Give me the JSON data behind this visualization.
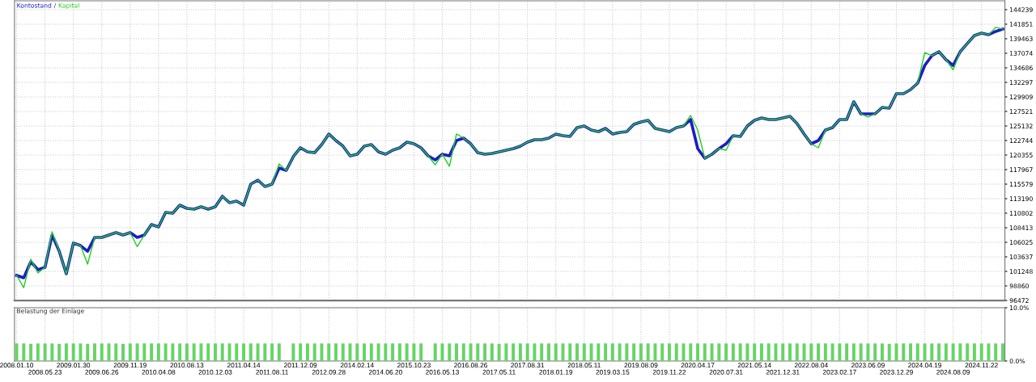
{
  "chart_data": [
    {
      "type": "line",
      "legend": "top left",
      "annotations": [
        "/"
      ],
      "grid": true,
      "tick_labels": "y",
      "line_style": "solid",
      "categories": [
        "2008.01.10",
        null,
        null,
        null,
        "2008.05.23",
        null,
        null,
        null,
        "2009.01.30",
        null,
        null,
        null,
        "2009.06.26",
        null,
        null,
        null,
        "2009.11.19",
        null,
        null,
        null,
        "2010.04.08",
        null,
        null,
        null,
        "2010.08.13",
        null,
        null,
        null,
        "2010.12.03",
        null,
        null,
        null,
        "2011.04.14",
        null,
        null,
        null,
        "2011.08.11",
        null,
        null,
        null,
        "2011.12.09",
        null,
        null,
        null,
        "2012.09.28",
        null,
        null,
        null,
        "2014.02.14",
        null,
        null,
        null,
        "2014.06.20",
        null,
        null,
        null,
        "2015.10.23",
        null,
        null,
        null,
        "2016.05.13",
        null,
        null,
        null,
        "2016.08.26",
        null,
        null,
        null,
        "2017.05.11",
        null,
        null,
        null,
        "2017.08.31",
        null,
        null,
        null,
        "2018.01.19",
        null,
        null,
        null,
        "2018.05.11",
        null,
        null,
        null,
        "2019.03.15",
        null,
        null,
        null,
        "2019.08.09",
        null,
        null,
        null,
        "2019.11.22",
        null,
        null,
        null,
        "2020.04.17",
        null,
        null,
        null,
        "2020.07.31",
        null,
        null,
        null,
        "2021.05.14",
        null,
        null,
        null,
        "2021.12.31",
        null,
        null,
        null,
        "2022.08.04",
        null,
        null,
        null,
        "2023.02.17",
        null,
        null,
        null,
        "2023.06.09",
        null,
        null,
        null,
        "2023.12.29",
        null,
        null,
        null,
        "2024.04.19",
        null,
        null,
        null,
        "2024.08.09",
        null,
        null,
        null,
        "2024.11.22",
        null,
        null,
        null
      ],
      "ylim": [
        96472,
        145700
      ],
      "yticks": [
        96472,
        98860,
        101248,
        103637,
        106025,
        108413,
        110802,
        113190,
        115579,
        117967,
        120355,
        122744,
        125132,
        127521,
        129909,
        132297,
        134686,
        137074,
        139463,
        141851,
        144239
      ],
      "series": [
        {
          "name": "Kontostand",
          "color": "#1c1cc8",
          "values": [
            100580,
            100190,
            102840,
            101510,
            101910,
            107220,
            104560,
            100850,
            105890,
            105490,
            104560,
            106820,
            106820,
            107220,
            107620,
            107220,
            107620,
            106820,
            107220,
            108940,
            108550,
            110930,
            110800,
            112130,
            111600,
            111470,
            111860,
            111470,
            111860,
            113590,
            112530,
            112790,
            112130,
            115580,
            116240,
            115180,
            115580,
            118230,
            117830,
            120090,
            121550,
            120890,
            120750,
            122080,
            123810,
            122740,
            121820,
            120220,
            120490,
            121820,
            122080,
            120890,
            120490,
            121150,
            121550,
            122480,
            122210,
            121550,
            120220,
            119560,
            120490,
            120220,
            122740,
            123140,
            122210,
            120750,
            120490,
            120620,
            120890,
            121150,
            121420,
            121820,
            122480,
            122880,
            122880,
            123140,
            123810,
            123540,
            123410,
            124870,
            125130,
            124470,
            124200,
            124730,
            123810,
            124070,
            124200,
            125400,
            125800,
            126060,
            124730,
            124470,
            124200,
            124870,
            125130,
            126190,
            121420,
            119820,
            120490,
            121420,
            122210,
            123540,
            123410,
            125130,
            126060,
            126460,
            126190,
            126190,
            126460,
            126720,
            125530,
            123810,
            122210,
            122740,
            124470,
            124870,
            126190,
            126190,
            129110,
            127120,
            127120,
            127120,
            128180,
            128050,
            130440,
            130440,
            131100,
            132160,
            135080,
            136680,
            137340,
            136010,
            135080,
            137340,
            138670,
            139990,
            140390,
            140130,
            140660,
            141060
          ]
        },
        {
          "name": "Kapital",
          "color": "#22cc22",
          "values": [
            100580,
            98590,
            103240,
            101000,
            101910,
            107750,
            104560,
            100850,
            105890,
            105490,
            102430,
            106820,
            106820,
            107220,
            107620,
            107220,
            107620,
            105300,
            107220,
            108940,
            108550,
            110930,
            110800,
            112130,
            111600,
            111470,
            111860,
            111470,
            111860,
            113590,
            112530,
            112790,
            112130,
            115580,
            116240,
            115180,
            115580,
            118900,
            117830,
            120090,
            121550,
            120890,
            120750,
            122080,
            123810,
            122740,
            121820,
            120220,
            120490,
            121820,
            122080,
            120890,
            120490,
            121150,
            121550,
            122480,
            122210,
            121550,
            120220,
            118760,
            120490,
            118500,
            123810,
            123140,
            122210,
            120750,
            120490,
            120620,
            120890,
            121150,
            121420,
            121820,
            122480,
            122880,
            122880,
            123140,
            123810,
            123540,
            123410,
            124870,
            125130,
            124470,
            124200,
            124730,
            123810,
            124070,
            124200,
            125400,
            125800,
            126060,
            124730,
            124470,
            124200,
            124870,
            125130,
            126860,
            124470,
            119820,
            120490,
            121420,
            121150,
            123540,
            123410,
            125130,
            126060,
            126460,
            126190,
            126190,
            126460,
            126720,
            125530,
            123810,
            122210,
            121550,
            124470,
            124870,
            126190,
            126190,
            129110,
            127120,
            126600,
            127120,
            128180,
            128050,
            130440,
            130440,
            131100,
            132160,
            137200,
            136680,
            137340,
            136010,
            134350,
            137340,
            138670,
            139990,
            140390,
            140130,
            141330,
            141060
          ]
        }
      ]
    },
    {
      "type": "bar",
      "title": "Belastung der Einlage",
      "grid": true,
      "color": "#66d466",
      "categories": [
        "2008.01.10",
        null,
        null,
        null,
        "2008.05.23",
        null,
        null,
        null,
        "2009.01.30",
        null,
        null,
        null,
        "2009.06.26",
        null,
        null,
        null,
        "2009.11.19",
        null,
        null,
        null,
        "2010.04.08",
        null,
        null,
        null,
        "2010.08.13",
        null,
        null,
        null,
        "2010.12.03",
        null,
        null,
        null,
        "2011.04.14",
        null,
        null,
        null,
        "2011.08.11",
        null,
        null,
        null,
        "2011.12.09",
        null,
        null,
        null,
        "2012.09.28",
        null,
        null,
        null,
        "2014.02.14",
        null,
        null,
        null,
        "2014.06.20",
        null,
        null,
        null,
        "2015.10.23",
        null,
        null,
        null,
        "2016.05.13",
        null,
        null,
        null,
        "2016.08.26",
        null,
        null,
        null,
        "2017.05.11",
        null,
        null,
        null,
        "2017.08.31",
        null,
        null,
        null,
        "2018.01.19",
        null,
        null,
        null,
        "2018.05.11",
        null,
        null,
        null,
        "2019.03.15",
        null,
        null,
        null,
        "2019.08.09",
        null,
        null,
        null,
        "2019.11.22",
        null,
        null,
        null,
        "2020.04.17",
        null,
        null,
        null,
        "2020.07.31",
        null,
        null,
        null,
        "2021.05.14",
        null,
        null,
        null,
        "2021.12.31",
        null,
        null,
        null,
        "2022.08.04",
        null,
        null,
        null,
        "2023.02.17",
        null,
        null,
        null,
        "2023.06.09",
        null,
        null,
        null,
        "2023.12.29",
        null,
        null,
        null,
        "2024.04.19",
        null,
        null,
        null,
        "2024.08.09",
        null,
        null,
        null,
        "2024.11.22",
        null,
        null,
        null
      ],
      "values": [
        3.3,
        3.3,
        3.2,
        3.3,
        3.3,
        3.3,
        3.2,
        3.3,
        3.3,
        3.3,
        3.2,
        3.3,
        3.3,
        3.3,
        3.3,
        3.2,
        3.3,
        3.3,
        3.3,
        3.3,
        3.3,
        3.3,
        3.3,
        3.3,
        3.3,
        3.3,
        3.3,
        3.3,
        3.3,
        3.3,
        3.3,
        3.3,
        3.3,
        3.3,
        3.3,
        3.3,
        3.3,
        3.3,
        null,
        3.3,
        3.3,
        3.3,
        3.3,
        3.3,
        3.3,
        3.3,
        3.3,
        3.3,
        3.3,
        3.3,
        3.3,
        3.3,
        3.3,
        3.3,
        3.3,
        3.3,
        3.3,
        3.3,
        null,
        3.3,
        3.3,
        3.3,
        3.3,
        3.3,
        3.3,
        3.3,
        3.3,
        3.3,
        3.2,
        3.3,
        3.3,
        3.3,
        3.3,
        3.3,
        3.3,
        3.3,
        3.3,
        3.3,
        3.3,
        3.3,
        3.3,
        3.3,
        3.3,
        3.3,
        3.3,
        3.3,
        3.3,
        3.3,
        3.3,
        3.3,
        3.3,
        3.3,
        3.3,
        3.3,
        3.3,
        3.3,
        3.3,
        3.3,
        3.3,
        3.3,
        3.3,
        3.3,
        3.3,
        3.3,
        3.3,
        3.3,
        3.3,
        3.3,
        3.3,
        3.3,
        3.3,
        3.3,
        3.3,
        3.3,
        3.3,
        3.3,
        3.3,
        3.3,
        3.3,
        3.3,
        3.3,
        3.3,
        3.3,
        3.2,
        3.3,
        3.3,
        3.3,
        3.3,
        3.3,
        3.3,
        3.3,
        3.3,
        3.3,
        3.3,
        3.3,
        3.3,
        3.3,
        3.3,
        3.3,
        3.3
      ],
      "ylim": [
        0,
        10
      ],
      "yticks": [
        {
          "value": 10,
          "label": "10.0%"
        },
        {
          "value": 0,
          "label": "0.0%"
        }
      ]
    }
  ]
}
